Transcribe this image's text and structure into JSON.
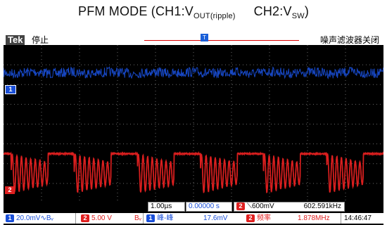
{
  "title": {
    "main": "PFM MODE (CH1:V",
    "sub1": "OUT(ripple)",
    "mid": "     CH2:V",
    "sub2": "SW",
    "end": ")"
  },
  "header": {
    "brand": "Tek",
    "state": "停止",
    "noise_filter": "噪声滤波器关闭"
  },
  "markers": {
    "ch1": "1",
    "ch2": "2"
  },
  "settings": {
    "timebase": "1.00µs",
    "delay": "0.00000 s",
    "trigger_ch": "2",
    "trigger_level": "⟍600mV",
    "trigger_freq": "602.591kHz",
    "ch1_scale": "20.0mV",
    "ch1_coupling": "∿Bᵥ",
    "ch2_scale": "5.00 V",
    "ch2_coupling": "Bᵥ",
    "meas1_label": "峰-峰",
    "meas1_value": "17.6mV",
    "meas2_label": "频率",
    "meas2_value": "1.878MHz",
    "time": "14:46:47"
  },
  "colors": {
    "ch1": "#1a4fd8",
    "ch2": "#e02020",
    "grid": "#6a6a6a",
    "background": "#000000"
  },
  "chart_data": {
    "type": "line",
    "xlabel": "",
    "ylabel": "",
    "x_divisions": 10,
    "y_divisions": 8,
    "time_per_div_us": 1.0,
    "grid": true,
    "series": [
      {
        "name": "1",
        "kind": "noise_band",
        "level_div": 2.6,
        "pk_pk_mV": 17.6
      },
      {
        "name": "2",
        "kind": "pfm_switching",
        "burst_period_div": 1.66,
        "burst_active_div": 0.97,
        "high_level_div": -1.5,
        "low_level_div": -3.5,
        "ringing_freq_MHz": 8.0,
        "trigger_freq_kHz": 602.591
      }
    ]
  }
}
